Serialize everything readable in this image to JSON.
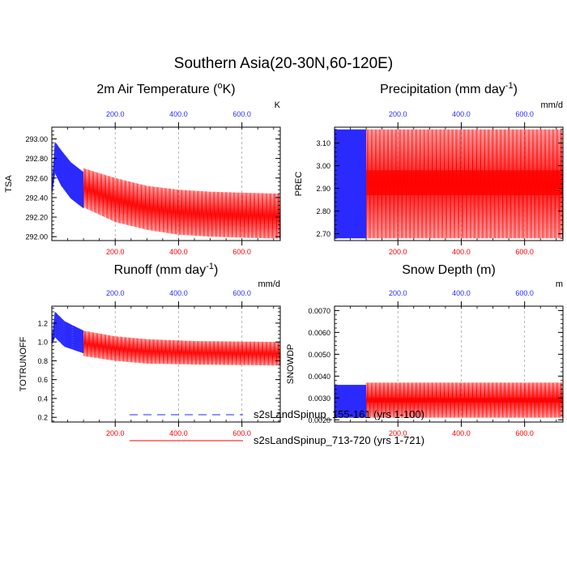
{
  "title": "Southern Asia(20-30N,60-120E)",
  "colors": {
    "blue": "#2a2aff",
    "red": "#ff0000",
    "frame": "#000000",
    "grid": "#9a9a9a"
  },
  "legend": {
    "items": [
      {
        "label": "s2sLandSpinup_155-161 (yrs 1-100)",
        "color": "#2a2aff",
        "dash": true
      },
      {
        "label": "s2sLandSpinup_713-720 (yrs 1-721)",
        "color": "#ff0000",
        "dash": false
      }
    ]
  },
  "chart_data": [
    {
      "type": "line",
      "title": "2m Air Temperature (°K)",
      "title_main": "2m Air Temperature (",
      "title_sup": "o",
      "title_tail": "K)",
      "units": "K",
      "ylabel": "TSA",
      "xlim": [
        0,
        721
      ],
      "ylim": [
        291.96,
        293.12
      ],
      "yticks": [
        292.0,
        292.2,
        292.4,
        292.6,
        292.8,
        293.0
      ],
      "ytick_labels": [
        "292.00",
        "292.20",
        "292.40",
        "292.60",
        "292.80",
        "293.00"
      ],
      "top_xticks": [
        200,
        400,
        600
      ],
      "top_xtick_labels": [
        "200.0",
        "400.0",
        "600.0"
      ],
      "bottom_xticks": [
        200,
        400,
        600
      ],
      "bottom_xtick_labels": [
        "200.0",
        "400.0",
        "600.0"
      ],
      "series": [
        {
          "name": "s2sLandSpinup_155-161 (yrs 1-100)",
          "x_range": [
            1,
            100
          ],
          "upper": [
            [
              1,
              292.55
            ],
            [
              10,
              292.97
            ],
            [
              30,
              292.88
            ],
            [
              60,
              292.76
            ],
            [
              100,
              292.66
            ]
          ],
          "lower": [
            [
              1,
              292.45
            ],
            [
              10,
              292.65
            ],
            [
              30,
              292.52
            ],
            [
              60,
              292.39
            ],
            [
              100,
              292.29
            ]
          ]
        },
        {
          "name": "s2sLandSpinup_713-720 (yrs 1-721)",
          "x_range": [
            100,
            721
          ],
          "upper": [
            [
              100,
              292.7
            ],
            [
              200,
              292.6
            ],
            [
              300,
              292.52
            ],
            [
              400,
              292.48
            ],
            [
              500,
              292.46
            ],
            [
              600,
              292.45
            ],
            [
              721,
              292.44
            ]
          ],
          "lower": [
            [
              100,
              292.3
            ],
            [
              200,
              292.15
            ],
            [
              300,
              292.07
            ],
            [
              400,
              292.02
            ],
            [
              500,
              292.0
            ],
            [
              600,
              291.99
            ],
            [
              721,
              291.98
            ]
          ]
        }
      ]
    },
    {
      "type": "line",
      "title": "Precipitation (mm day-1)",
      "title_main": "Precipitation (mm day",
      "title_sup": "-1",
      "title_tail": ")",
      "units": "mm/d",
      "ylabel": "PREC",
      "xlim": [
        0,
        721
      ],
      "ylim": [
        2.67,
        3.17
      ],
      "yticks": [
        2.7,
        2.8,
        2.9,
        3.0,
        3.1
      ],
      "ytick_labels": [
        "2.70",
        "2.80",
        "2.90",
        "3.00",
        "3.10"
      ],
      "top_xticks": [
        200,
        400,
        600
      ],
      "top_xtick_labels": [
        "200.0",
        "400.0",
        "600.0"
      ],
      "bottom_xticks": [
        200,
        400,
        600
      ],
      "bottom_xtick_labels": [
        "200.0",
        "400.0",
        "600.0"
      ],
      "series": [
        {
          "name": "s2sLandSpinup_155-161 (yrs 1-100)",
          "x_range": [
            1,
            100
          ],
          "upper": [
            [
              1,
              3.16
            ],
            [
              100,
              3.16
            ]
          ],
          "lower": [
            [
              1,
              2.68
            ],
            [
              100,
              2.68
            ]
          ],
          "band": [
            2.87,
            2.98
          ]
        },
        {
          "name": "s2sLandSpinup_713-720 (yrs 1-721)",
          "x_range": [
            100,
            721
          ],
          "upper": [
            [
              100,
              3.16
            ],
            [
              721,
              3.16
            ]
          ],
          "lower": [
            [
              100,
              2.68
            ],
            [
              721,
              2.68
            ]
          ],
          "band": [
            2.87,
            2.98
          ]
        }
      ]
    },
    {
      "type": "line",
      "title": "Runoff (mm day-1)",
      "title_main": "Runoff (mm day",
      "title_sup": "-1",
      "title_tail": ")",
      "units": "mm/d",
      "ylabel": "TOTRUNOFF",
      "xlim": [
        0,
        721
      ],
      "ylim": [
        0.15,
        1.38
      ],
      "yticks": [
        0.2,
        0.4,
        0.6,
        0.8,
        1.0,
        1.2
      ],
      "ytick_labels": [
        "0.2",
        "0.4",
        "0.6",
        "0.8",
        "1.0",
        "1.2"
      ],
      "top_xticks": [
        200,
        400,
        600
      ],
      "top_xtick_labels": [
        "200.0",
        "400.0",
        "600.0"
      ],
      "bottom_xticks": [
        200,
        400,
        600
      ],
      "bottom_xtick_labels": [
        "200.0",
        "400.0",
        "600.0"
      ],
      "series": [
        {
          "name": "s2sLandSpinup_155-161 (yrs 1-100)",
          "x_range": [
            1,
            100
          ],
          "upper": [
            [
              1,
              1.05
            ],
            [
              10,
              1.32
            ],
            [
              40,
              1.22
            ],
            [
              100,
              1.12
            ]
          ],
          "lower": [
            [
              1,
              0.98
            ],
            [
              10,
              1.05
            ],
            [
              40,
              0.95
            ],
            [
              100,
              0.88
            ]
          ]
        },
        {
          "name": "s2sLandSpinup_713-720 (yrs 1-721)",
          "x_range": [
            100,
            721
          ],
          "upper": [
            [
              100,
              1.12
            ],
            [
              200,
              1.06
            ],
            [
              300,
              1.03
            ],
            [
              450,
              1.01
            ],
            [
              721,
              1.0
            ]
          ],
          "lower": [
            [
              100,
              0.85
            ],
            [
              200,
              0.8
            ],
            [
              300,
              0.77
            ],
            [
              450,
              0.76
            ],
            [
              721,
              0.75
            ]
          ]
        }
      ]
    },
    {
      "type": "line",
      "title": "Snow Depth (m)",
      "title_main": "Snow Depth (m)",
      "title_sup": "",
      "title_tail": "",
      "units": "m",
      "ylabel": "SNOWDP",
      "xlim": [
        0,
        721
      ],
      "ylim": [
        0.0019,
        0.0072
      ],
      "yticks": [
        0.002,
        0.003,
        0.004,
        0.005,
        0.006,
        0.007
      ],
      "ytick_labels": [
        "0.0020",
        "0.0030",
        "0.0040",
        "0.0050",
        "0.0060",
        "0.0070"
      ],
      "top_xticks": [
        200,
        400,
        600
      ],
      "top_xtick_labels": [
        "200.0",
        "400.0",
        "600.0"
      ],
      "bottom_xticks": [
        200,
        400,
        600
      ],
      "bottom_xtick_labels": [
        "200.0",
        "400.0",
        "600.0"
      ],
      "series": [
        {
          "name": "s2sLandSpinup_155-161 (yrs 1-100)",
          "x_range": [
            1,
            100
          ],
          "upper": [
            [
              1,
              0.0036
            ],
            [
              100,
              0.0036
            ]
          ],
          "lower": [
            [
              1,
              0.0021
            ],
            [
              100,
              0.0021
            ]
          ],
          "band": [
            0.0027,
            0.0029
          ]
        },
        {
          "name": "s2sLandSpinup_713-720 (yrs 1-721)",
          "x_range": [
            100,
            721
          ],
          "upper": [
            [
              100,
              0.0037
            ],
            [
              721,
              0.0037
            ]
          ],
          "lower": [
            [
              100,
              0.0021
            ],
            [
              721,
              0.0021
            ]
          ],
          "band": [
            0.0028,
            0.003
          ]
        }
      ]
    }
  ]
}
